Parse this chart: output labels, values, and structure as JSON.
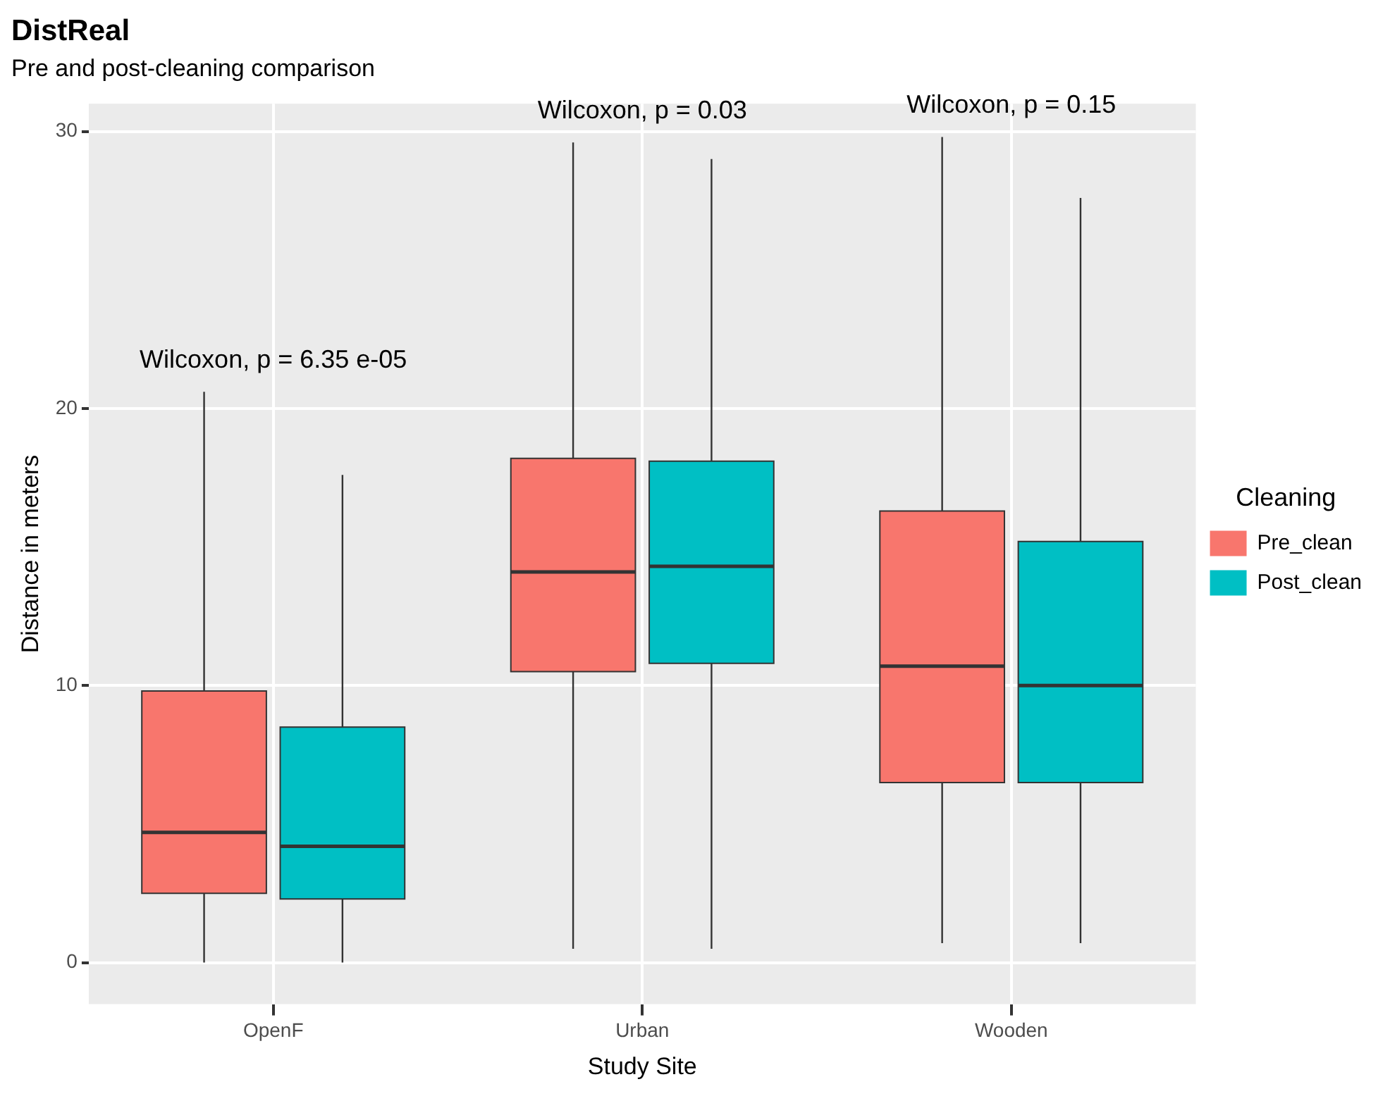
{
  "chart_data": {
    "type": "box",
    "title": "DistReal",
    "subtitle": "Pre and post-cleaning comparison",
    "xlabel": "Study Site",
    "ylabel": "Distance in meters",
    "legend_title": "Cleaning",
    "legend": "right",
    "grid": true,
    "categories": [
      "OpenF",
      "Urban",
      "Wooden"
    ],
    "ylim": [
      -1.5,
      31
    ],
    "yticks": [
      0,
      10,
      20,
      30
    ],
    "series": [
      {
        "name": "Pre_clean",
        "color": "#f8766d",
        "boxes": [
          {
            "low": 0,
            "q1": 2.5,
            "median": 4.7,
            "q3": 9.8,
            "high": 20.6
          },
          {
            "low": 0.5,
            "q1": 10.5,
            "median": 14.1,
            "q3": 18.2,
            "high": 29.6
          },
          {
            "low": 0.7,
            "q1": 6.5,
            "median": 10.7,
            "q3": 16.3,
            "high": 29.8
          }
        ]
      },
      {
        "name": "Post_clean",
        "color": "#00bfc4",
        "boxes": [
          {
            "low": 0,
            "q1": 2.3,
            "median": 4.2,
            "q3": 8.5,
            "high": 17.6
          },
          {
            "low": 0.5,
            "q1": 10.8,
            "median": 14.3,
            "q3": 18.1,
            "high": 29
          },
          {
            "low": 0.7,
            "q1": 6.5,
            "median": 10,
            "q3": 15.2,
            "high": 27.6
          }
        ]
      }
    ],
    "annotations": [
      "Wilcoxon, p = 6.35 e-05",
      "Wilcoxon, p = 0.03",
      "Wilcoxon, p = 0.15"
    ]
  }
}
